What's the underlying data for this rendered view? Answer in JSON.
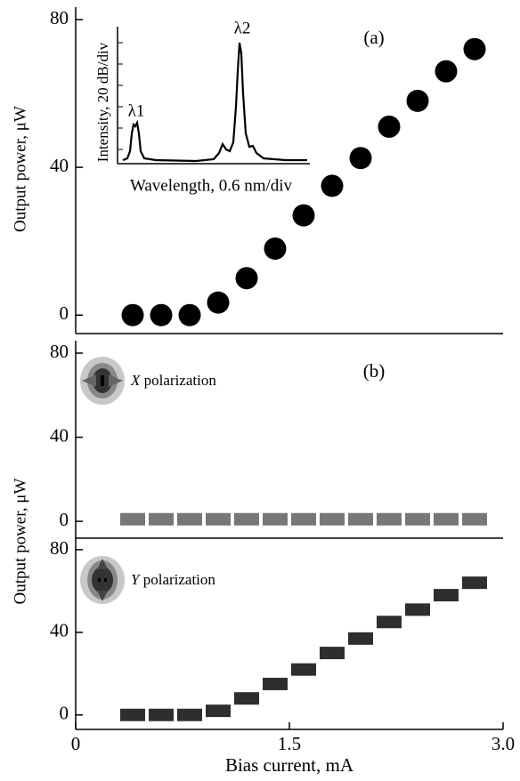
{
  "chart_data": [
    {
      "type": "scatter",
      "marker": "circle",
      "panel_label": "(a)",
      "y_label": "Output power, μW",
      "x": [
        0.4,
        0.6,
        0.8,
        1.0,
        1.2,
        1.4,
        1.6,
        1.8,
        2.0,
        2.2,
        2.4,
        2.6,
        2.8
      ],
      "series": [
        {
          "color": "#000000",
          "values": [
            0,
            0,
            0,
            3.4,
            10,
            18,
            27,
            35,
            42.5,
            51,
            58,
            66,
            72
          ]
        }
      ],
      "xlim": [
        0,
        3
      ],
      "ylim": [
        -5,
        80
      ],
      "yticks": [
        0,
        40,
        80
      ],
      "inset": {
        "y_label": "Intensity, 20 dB/div",
        "x_label": "Wavelength, 0.6 nm/div",
        "peak1": "λ1",
        "peak2": "λ2"
      }
    },
    {
      "type": "scatter",
      "marker": "square",
      "panel_label": "(b)",
      "annotation": "X polarization",
      "x": [
        0.4,
        0.6,
        0.8,
        1.0,
        1.2,
        1.4,
        1.6,
        1.8,
        2.0,
        2.2,
        2.4,
        2.6,
        2.8
      ],
      "series": [
        {
          "color": "#777777",
          "values": [
            1,
            1,
            1,
            1,
            1,
            1,
            1,
            1,
            1,
            1,
            1,
            1,
            1
          ]
        }
      ],
      "xlim": [
        0,
        3
      ],
      "ylim": [
        -8,
        80
      ],
      "yticks": [
        0,
        40,
        80
      ],
      "y_label": "Output power, μW"
    },
    {
      "type": "scatter",
      "marker": "square",
      "annotation": "Y polarization",
      "x": [
        0.4,
        0.6,
        0.8,
        1.0,
        1.2,
        1.4,
        1.6,
        1.8,
        2.0,
        2.2,
        2.4,
        2.6,
        2.8
      ],
      "series": [
        {
          "color": "#2e2e2e",
          "values": [
            0,
            0,
            0,
            2,
            8,
            15,
            22,
            30,
            37,
            45,
            51,
            58,
            64
          ]
        }
      ],
      "xlim": [
        0,
        3
      ],
      "ylim": [
        -7,
        80
      ],
      "yticks": [
        0,
        40,
        80
      ],
      "xticks": [
        0,
        1.5,
        {
          "value": 3,
          "label": "3.0"
        }
      ],
      "x_label": "Bias current, mA"
    }
  ]
}
